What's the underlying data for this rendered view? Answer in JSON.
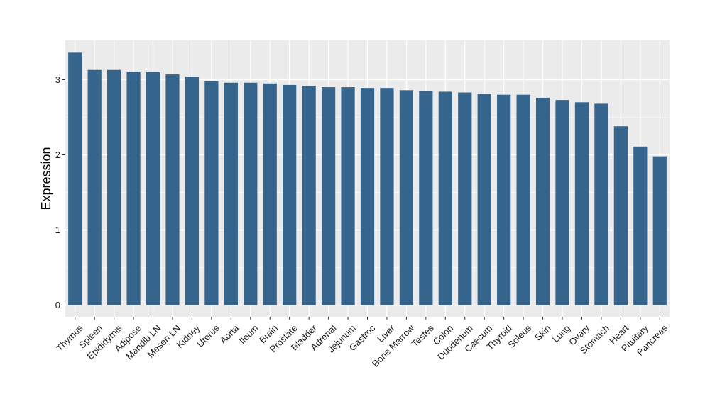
{
  "chart_data": {
    "type": "bar",
    "title": "",
    "xlabel": "",
    "ylabel": "Expression",
    "ylim": [
      0,
      3.5
    ],
    "yticks": [
      0,
      1,
      2,
      3
    ],
    "grid": true,
    "legend": "none",
    "categories": [
      "Thymus",
      "Spleen",
      "Epididymis",
      "Adipose",
      "Mandib LN",
      "Mesen LN",
      "Kidney",
      "Uterus",
      "Aorta",
      "Ileum",
      "Brain",
      "Prostate",
      "Bladder",
      "Adrenal",
      "Jejunum",
      "Gastroc",
      "Liver",
      "Bone Marrow",
      "Testes",
      "Colon",
      "Duodenum",
      "Caecum",
      "Thyroid",
      "Soleus",
      "Skin",
      "Lung",
      "Ovary",
      "Stomach",
      "Heart",
      "Pituitary",
      "Pancreas"
    ],
    "values": [
      3.36,
      3.13,
      3.13,
      3.1,
      3.1,
      3.07,
      3.04,
      2.98,
      2.96,
      2.96,
      2.95,
      2.93,
      2.92,
      2.9,
      2.9,
      2.89,
      2.89,
      2.86,
      2.85,
      2.84,
      2.83,
      2.81,
      2.8,
      2.8,
      2.76,
      2.73,
      2.7,
      2.68,
      2.38,
      2.11,
      1.98
    ],
    "colors": {
      "bar": "#35648c",
      "panel": "#ebebeb",
      "grid": "#ffffff"
    }
  }
}
